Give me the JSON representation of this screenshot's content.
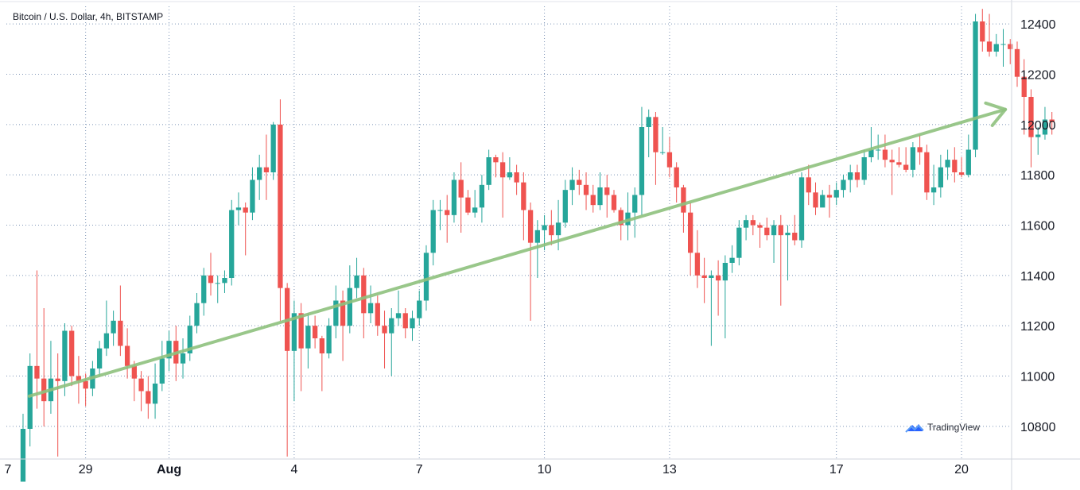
{
  "chart_data": {
    "type": "candlestick",
    "title": "Bitcoin / U.S. Dollar, 4h, BITSTAMP",
    "ylim": [
      10670,
      12470
    ],
    "grid": true,
    "y_ticks": [
      10800,
      11000,
      11200,
      11400,
      11600,
      11800,
      12000,
      12200,
      12400
    ],
    "x_ticks": [
      {
        "label": "7",
        "x": 27
      },
      {
        "label": "29",
        "x": 29
      },
      {
        "label": "Aug",
        "x": 31
      },
      {
        "label": "4",
        "x": 34
      },
      {
        "label": "7",
        "x": 37
      },
      {
        "label": "10",
        "x": 40
      },
      {
        "label": "13",
        "x": 43
      },
      {
        "label": "17",
        "x": 47
      },
      {
        "label": "20",
        "x": 50
      }
    ],
    "x_range_days": [
      27.1,
      51.2
    ],
    "first_candle_day": 27.5,
    "candles": [
      [
        10580,
        10790,
        10500,
        10850
      ],
      [
        10790,
        11040,
        10720,
        11090
      ],
      [
        11040,
        10990,
        10870,
        11420
      ],
      [
        10990,
        10900,
        10800,
        11270
      ],
      [
        10900,
        10990,
        10850,
        11140
      ],
      [
        10990,
        10980,
        10680,
        11090
      ],
      [
        10980,
        11180,
        10920,
        11210
      ],
      [
        11180,
        11000,
        10960,
        11200
      ],
      [
        11000,
        10980,
        10890,
        11080
      ],
      [
        10980,
        10950,
        10880,
        11010
      ],
      [
        10950,
        11030,
        10920,
        11060
      ],
      [
        11030,
        11110,
        11000,
        11140
      ],
      [
        11110,
        11170,
        11080,
        11300
      ],
      [
        11170,
        11220,
        11120,
        11260
      ],
      [
        11220,
        11120,
        11080,
        11360
      ],
      [
        11120,
        11040,
        10990,
        11190
      ],
      [
        11040,
        10990,
        10900,
        11060
      ],
      [
        10990,
        10940,
        10860,
        11020
      ],
      [
        10940,
        10890,
        10830,
        11000
      ],
      [
        10890,
        10970,
        10830,
        11050
      ],
      [
        10970,
        11070,
        10940,
        11140
      ],
      [
        11070,
        11140,
        11020,
        11180
      ],
      [
        11140,
        11050,
        10980,
        11200
      ],
      [
        11050,
        11090,
        10990,
        11150
      ],
      [
        11090,
        11200,
        11060,
        11240
      ],
      [
        11200,
        11290,
        11170,
        11330
      ],
      [
        11290,
        11400,
        11240,
        11430
      ],
      [
        11400,
        11370,
        11320,
        11490
      ],
      [
        11370,
        11370,
        11290,
        11400
      ],
      [
        11370,
        11390,
        11330,
        11420
      ],
      [
        11390,
        11660,
        11360,
        11700
      ],
      [
        11660,
        11670,
        11600,
        11730
      ],
      [
        11670,
        11650,
        11480,
        11690
      ],
      [
        11650,
        11780,
        11620,
        11830
      ],
      [
        11780,
        11830,
        11700,
        11880
      ],
      [
        11830,
        11810,
        11700,
        11960
      ],
      [
        11810,
        12000,
        11780,
        12010
      ],
      [
        12000,
        11350,
        11220,
        12100
      ],
      [
        11350,
        11100,
        10680,
        11370
      ],
      [
        11100,
        11250,
        10900,
        11300
      ],
      [
        11250,
        11110,
        10940,
        11290
      ],
      [
        11110,
        11200,
        11030,
        11250
      ],
      [
        11200,
        11150,
        11110,
        11240
      ],
      [
        11150,
        11090,
        10940,
        11160
      ],
      [
        11090,
        11200,
        11070,
        11230
      ],
      [
        11200,
        11300,
        11150,
        11360
      ],
      [
        11300,
        11200,
        11060,
        11340
      ],
      [
        11200,
        11350,
        11170,
        11440
      ],
      [
        11350,
        11400,
        11310,
        11470
      ],
      [
        11400,
        11250,
        11150,
        11430
      ],
      [
        11250,
        11290,
        11210,
        11360
      ],
      [
        11290,
        11200,
        11160,
        11320
      ],
      [
        11200,
        11170,
        11030,
        11260
      ],
      [
        11170,
        11230,
        11000,
        11270
      ],
      [
        11230,
        11250,
        11200,
        11340
      ],
      [
        11250,
        11190,
        11150,
        11270
      ],
      [
        11190,
        11230,
        11140,
        11260
      ],
      [
        11230,
        11300,
        11200,
        11340
      ],
      [
        11300,
        11490,
        11260,
        11520
      ],
      [
        11490,
        11660,
        11440,
        11700
      ],
      [
        11660,
        11660,
        11580,
        11700
      ],
      [
        11660,
        11640,
        11530,
        11720
      ],
      [
        11640,
        11780,
        11610,
        11810
      ],
      [
        11780,
        11710,
        11570,
        11850
      ],
      [
        11710,
        11650,
        11640,
        11740
      ],
      [
        11650,
        11670,
        11630,
        11740
      ],
      [
        11670,
        11760,
        11610,
        11800
      ],
      [
        11760,
        11870,
        11740,
        11900
      ],
      [
        11870,
        11850,
        11790,
        11880
      ],
      [
        11850,
        11790,
        11630,
        11890
      ],
      [
        11790,
        11810,
        11780,
        11870
      ],
      [
        11810,
        11770,
        11720,
        11840
      ],
      [
        11770,
        11660,
        11540,
        11810
      ],
      [
        11660,
        11530,
        11220,
        11690
      ],
      [
        11530,
        11580,
        11390,
        11620
      ],
      [
        11580,
        11600,
        11500,
        11640
      ],
      [
        11600,
        11560,
        11520,
        11660
      ],
      [
        11560,
        11610,
        11500,
        11700
      ],
      [
        11610,
        11740,
        11590,
        11780
      ],
      [
        11740,
        11780,
        11680,
        11830
      ],
      [
        11780,
        11760,
        11720,
        11820
      ],
      [
        11760,
        11720,
        11660,
        11810
      ],
      [
        11720,
        11680,
        11650,
        11760
      ],
      [
        11680,
        11750,
        11660,
        11810
      ],
      [
        11750,
        11720,
        11630,
        11800
      ],
      [
        11720,
        11660,
        11650,
        11740
      ],
      [
        11660,
        11600,
        11540,
        11670
      ],
      [
        11600,
        11650,
        11540,
        11730
      ],
      [
        11650,
        11720,
        11550,
        11750
      ],
      [
        11720,
        11990,
        11640,
        12070
      ],
      [
        11990,
        12030,
        11870,
        12060
      ],
      [
        12030,
        11890,
        11760,
        12050
      ],
      [
        11890,
        11890,
        11880,
        11990
      ],
      [
        11890,
        11830,
        11790,
        11950
      ],
      [
        11830,
        11750,
        11690,
        11850
      ],
      [
        11750,
        11650,
        11570,
        11760
      ],
      [
        11650,
        11490,
        11400,
        11690
      ],
      [
        11490,
        11400,
        11350,
        11580
      ],
      [
        11400,
        11390,
        11290,
        11470
      ],
      [
        11390,
        11400,
        11120,
        11420
      ],
      [
        11400,
        11380,
        11240,
        11460
      ],
      [
        11380,
        11450,
        11150,
        11480
      ],
      [
        11450,
        11470,
        11410,
        11520
      ],
      [
        11470,
        11590,
        11440,
        11620
      ],
      [
        11590,
        11620,
        11540,
        11640
      ],
      [
        11620,
        11600,
        11560,
        11640
      ],
      [
        11600,
        11590,
        11510,
        11610
      ],
      [
        11590,
        11560,
        11540,
        11630
      ],
      [
        11560,
        11600,
        11450,
        11620
      ],
      [
        11600,
        11560,
        11280,
        11640
      ],
      [
        11560,
        11570,
        11380,
        11600
      ],
      [
        11570,
        11540,
        11520,
        11640
      ],
      [
        11540,
        11790,
        11510,
        11810
      ],
      [
        11790,
        11730,
        11680,
        11840
      ],
      [
        11730,
        11670,
        11640,
        11770
      ],
      [
        11670,
        11720,
        11680,
        11740
      ],
      [
        11720,
        11710,
        11630,
        11760
      ],
      [
        11710,
        11740,
        11680,
        11770
      ],
      [
        11740,
        11780,
        11710,
        11800
      ],
      [
        11780,
        11810,
        11730,
        11840
      ],
      [
        11810,
        11780,
        11750,
        11840
      ],
      [
        11780,
        11870,
        11760,
        11900
      ],
      [
        11870,
        11900,
        11850,
        11990
      ],
      [
        11900,
        11900,
        11860,
        11960
      ],
      [
        11900,
        11860,
        11830,
        11960
      ],
      [
        11860,
        11850,
        11720,
        11900
      ],
      [
        11850,
        11840,
        11830,
        11910
      ],
      [
        11840,
        11820,
        11810,
        11910
      ],
      [
        11820,
        11910,
        11790,
        11930
      ],
      [
        11910,
        11890,
        11840,
        11960
      ],
      [
        11890,
        11730,
        11700,
        11920
      ],
      [
        11730,
        11750,
        11680,
        11840
      ],
      [
        11750,
        11830,
        11710,
        11880
      ],
      [
        11830,
        11860,
        11780,
        11900
      ],
      [
        11860,
        11810,
        11770,
        11910
      ],
      [
        11810,
        11800,
        11790,
        11870
      ],
      [
        11800,
        11900,
        11790,
        11960
      ],
      [
        11900,
        12410,
        11870,
        12440
      ],
      [
        12410,
        12330,
        12290,
        12460
      ],
      [
        12330,
        12290,
        12270,
        12440
      ],
      [
        12290,
        12320,
        12270,
        12360
      ],
      [
        12320,
        12320,
        12230,
        12380
      ],
      [
        12320,
        12300,
        12240,
        12340
      ],
      [
        12300,
        12190,
        12150,
        12330
      ],
      [
        12190,
        12110,
        11960,
        12260
      ],
      [
        12110,
        11950,
        11830,
        12140
      ],
      [
        11950,
        11960,
        11880,
        11990
      ],
      [
        11960,
        12020,
        11940,
        12070
      ],
      [
        12020,
        12010,
        11960,
        12050
      ]
    ],
    "trendline": {
      "start": {
        "day": 27.65,
        "value": 10920
      },
      "end": {
        "day": 51.05,
        "value": 12060
      }
    },
    "colors": {
      "up": "#26a69a",
      "down": "#ef5350",
      "trend": "#8fc17e",
      "grid": "#4a6a9a"
    }
  },
  "branding": {
    "text": "TradingView"
  }
}
